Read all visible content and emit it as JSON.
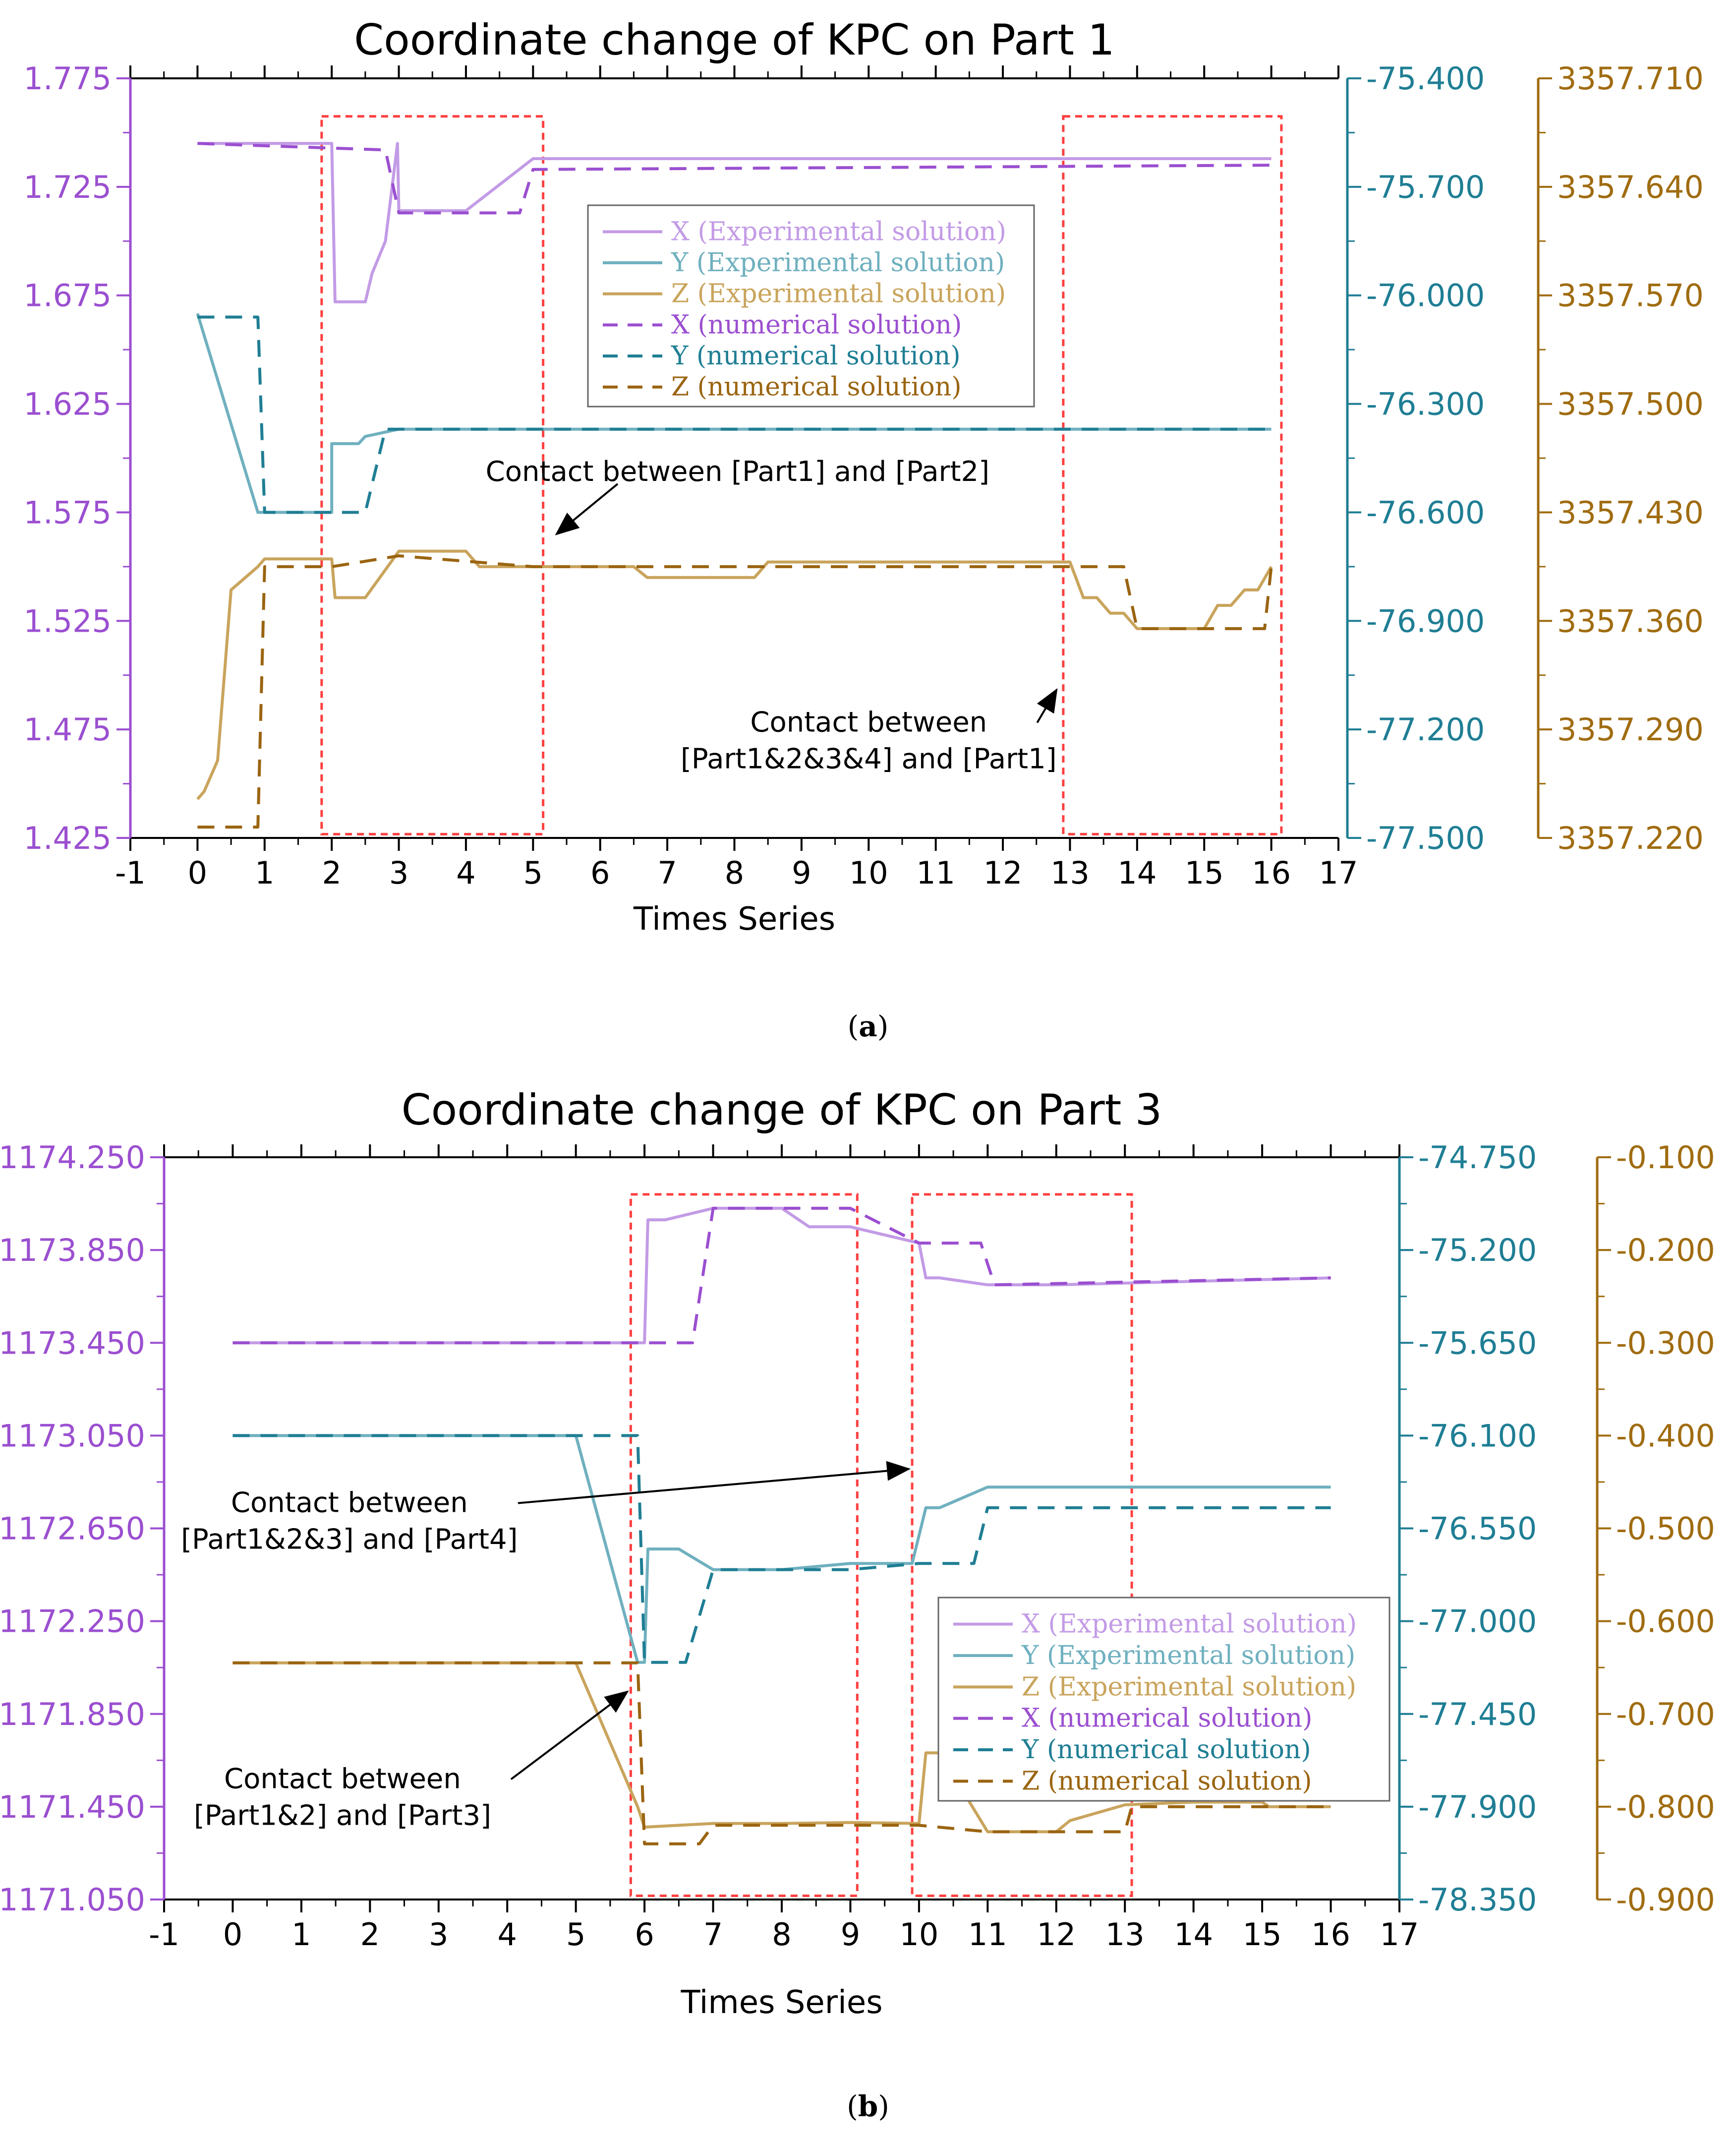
{
  "colors": {
    "x_axis": "#9b4fd0",
    "y_axis": "#1f7e94",
    "z_axis": "#a06c10",
    "x_exp": "#c39be6",
    "y_exp": "#6fb0bf",
    "z_exp": "#c9a45c",
    "x_num": "#9b4fd0",
    "y_num": "#1f7e94",
    "z_num": "#9a6410",
    "box": "#ff4040"
  },
  "chart_data": [
    {
      "type": "line",
      "title": "Coordinate change of KPC on Part 1",
      "xlabel": "Times Series",
      "caption": "a",
      "xlim": [
        -1,
        17
      ],
      "xticks": [
        "-1",
        "0",
        "1",
        "2",
        "3",
        "4",
        "5",
        "6",
        "7",
        "8",
        "9",
        "10",
        "11",
        "12",
        "13",
        "14",
        "15",
        "16",
        "17"
      ],
      "axes": {
        "left": {
          "color_key": "x_axis",
          "lim": [
            1.425,
            1.775
          ],
          "ticks": [
            "1.425",
            "1.475",
            "1.525",
            "1.575",
            "1.625",
            "1.675",
            "1.725",
            "1.775"
          ]
        },
        "right1": {
          "color_key": "y_axis",
          "lim": [
            -77.5,
            -75.4
          ],
          "ticks": [
            "-77.500",
            "-77.200",
            "-76.900",
            "-76.600",
            "-76.300",
            "-76.000",
            "-75.700",
            "-75.400"
          ]
        },
        "right2": {
          "color_key": "z_axis",
          "lim": [
            3357.22,
            3357.71
          ],
          "ticks": [
            "3357.220",
            "3357.290",
            "3357.360",
            "3357.430",
            "3357.500",
            "3357.570",
            "3357.640",
            "3357.710"
          ]
        }
      },
      "legend": {
        "position": "center-top",
        "entries": [
          {
            "label": "X (Experimental solution)",
            "series": 0
          },
          {
            "label": "Y (Experimental solution)",
            "series": 1
          },
          {
            "label": "Z (Experimental solution)",
            "series": 2
          },
          {
            "label": "X (numerical solution)",
            "series": 3
          },
          {
            "label": "Y (numerical solution)",
            "series": 4
          },
          {
            "label": "Z (numerical solution)",
            "series": 5
          }
        ]
      },
      "series": [
        {
          "name": "X (Experimental solution)",
          "axis": "left",
          "color_key": "x_exp",
          "dash": false,
          "x": [
            0,
            2,
            2.05,
            2.5,
            2.6,
            2.8,
            2.98,
            3.0,
            4.0,
            5.0,
            16.0
          ],
          "y": [
            1.745,
            1.745,
            1.672,
            1.672,
            1.685,
            1.7,
            1.745,
            1.714,
            1.714,
            1.738,
            1.738
          ]
        },
        {
          "name": "Y (Experimental solution)",
          "axis": "right1",
          "color_key": "y_exp",
          "dash": false,
          "x": [
            0,
            0.9,
            2.0,
            2.0,
            2.05,
            2.4,
            2.5,
            3.0,
            16.0
          ],
          "y": [
            -76.05,
            -76.6,
            -76.6,
            -76.41,
            -76.41,
            -76.41,
            -76.39,
            -76.37,
            -76.37
          ]
        },
        {
          "name": "Z (Experimental solution)",
          "axis": "right2",
          "color_key": "z_exp",
          "dash": false,
          "x": [
            0,
            0.1,
            0.3,
            0.5,
            0.9,
            1.0,
            2.0,
            2.05,
            2.5,
            3.0,
            4.0,
            4.2,
            6.5,
            6.7,
            7.0,
            8.3,
            8.5,
            13.0,
            13.2,
            13.4,
            13.6,
            13.8,
            14.0,
            15.0,
            15.2,
            15.4,
            15.6,
            15.8,
            16.0
          ],
          "y": [
            3357.245,
            3357.25,
            3357.27,
            3357.38,
            3357.395,
            3357.4,
            3357.4,
            3357.375,
            3357.375,
            3357.405,
            3357.405,
            3357.395,
            3357.395,
            3357.388,
            3357.388,
            3357.388,
            3357.398,
            3357.398,
            3357.375,
            3357.375,
            3357.365,
            3357.365,
            3357.355,
            3357.355,
            3357.37,
            3357.37,
            3357.38,
            3357.38,
            3357.395
          ]
        },
        {
          "name": "X (numerical solution)",
          "axis": "left",
          "color_key": "x_num",
          "dash": true,
          "x": [
            0,
            2.8,
            3.0,
            4.8,
            5.0,
            16.0
          ],
          "y": [
            1.745,
            1.742,
            1.713,
            1.713,
            1.733,
            1.735
          ]
        },
        {
          "name": "Y (numerical solution)",
          "axis": "right1",
          "color_key": "y_num",
          "dash": true,
          "x": [
            0,
            0.9,
            1.0,
            2.5,
            2.8,
            3.0,
            16.0
          ],
          "y": [
            -76.06,
            -76.06,
            -76.6,
            -76.6,
            -76.37,
            -76.37,
            -76.37
          ]
        },
        {
          "name": "Z (numerical solution)",
          "axis": "right2",
          "color_key": "z_num",
          "dash": true,
          "x": [
            0,
            0.9,
            1.0,
            2.0,
            3.0,
            5.0,
            13.8,
            14.0,
            15.9,
            16.0
          ],
          "y": [
            3357.227,
            3357.227,
            3357.395,
            3357.395,
            3357.402,
            3357.395,
            3357.395,
            3357.355,
            3357.355,
            3357.395
          ]
        }
      ],
      "boxes": [
        {
          "x0": 1.85,
          "x1": 5.15
        },
        {
          "x0": 12.9,
          "x1": 16.15
        }
      ],
      "annotations": [
        {
          "lines": [
            "Contact between [Part1] and [Part2]"
          ],
          "anchor": "end",
          "tx": 11.8,
          "ty_frac": 0.53,
          "ax": 5.35,
          "ay_frac": 0.6
        },
        {
          "lines": [
            "Contact between",
            "[Part1&2&3&4] and [Part1]"
          ],
          "anchor": "middle",
          "tx": 10.0,
          "ty_frac": 0.86,
          "ax": 12.8,
          "ay_frac": 0.805
        }
      ]
    },
    {
      "type": "line",
      "title": "Coordinate change of KPC on Part 3",
      "xlabel": "Times Series",
      "caption": "b",
      "xlim": [
        -1,
        17
      ],
      "xticks": [
        "-1",
        "0",
        "1",
        "2",
        "3",
        "4",
        "5",
        "6",
        "7",
        "8",
        "9",
        "10",
        "11",
        "12",
        "13",
        "14",
        "15",
        "16",
        "17"
      ],
      "axes": {
        "left": {
          "color_key": "x_axis",
          "lim": [
            1171.05,
            1174.25
          ],
          "ticks": [
            "1171.050",
            "1171.450",
            "1171.850",
            "1172.250",
            "1172.650",
            "1173.050",
            "1173.450",
            "1173.850",
            "1174.250"
          ]
        },
        "right1": {
          "color_key": "y_axis",
          "lim": [
            -78.35,
            -74.75
          ],
          "ticks": [
            "-78.350",
            "-77.900",
            "-77.450",
            "-77.000",
            "-76.550",
            "-76.100",
            "-75.650",
            "-75.200",
            "-74.750"
          ]
        },
        "right2": {
          "color_key": "z_axis",
          "lim": [
            -0.9,
            -0.1
          ],
          "ticks": [
            "-0.900",
            "-0.800",
            "-0.700",
            "-0.600",
            "-0.500",
            "-0.400",
            "-0.300",
            "-0.200",
            "-0.100"
          ]
        }
      },
      "legend": {
        "position": "lower-right",
        "entries": [
          {
            "label": "X (Experimental solution)",
            "series": 0
          },
          {
            "label": "Y (Experimental solution)",
            "series": 1
          },
          {
            "label": "Z (Experimental solution)",
            "series": 2
          },
          {
            "label": "X (numerical solution)",
            "series": 3
          },
          {
            "label": "Y (numerical solution)",
            "series": 4
          },
          {
            "label": "Z (numerical solution)",
            "series": 5
          }
        ]
      },
      "series": [
        {
          "name": "X (Experimental solution)",
          "axis": "left",
          "color_key": "x_exp",
          "dash": false,
          "x": [
            0,
            6.0,
            6.05,
            6.3,
            7.0,
            8.0,
            8.4,
            9.0,
            10.0,
            10.1,
            10.3,
            11.0,
            12.0,
            16.0
          ],
          "y": [
            1173.45,
            1173.45,
            1173.98,
            1173.98,
            1174.03,
            1174.03,
            1173.95,
            1173.95,
            1173.88,
            1173.73,
            1173.73,
            1173.7,
            1173.7,
            1173.73
          ]
        },
        {
          "name": "Y (Experimental solution)",
          "axis": "right1",
          "color_key": "y_exp",
          "dash": false,
          "x": [
            0,
            5.0,
            5.9,
            6.0,
            6.05,
            6.5,
            7.0,
            8.0,
            9.0,
            9.9,
            10.1,
            10.3,
            11.0,
            16.0
          ],
          "y": [
            -76.1,
            -76.1,
            -77.2,
            -77.2,
            -76.65,
            -76.65,
            -76.75,
            -76.75,
            -76.72,
            -76.72,
            -76.45,
            -76.45,
            -76.35,
            -76.35
          ]
        },
        {
          "name": "Z (Experimental solution)",
          "axis": "right2",
          "color_key": "z_exp",
          "dash": false,
          "x": [
            0,
            5.0,
            5.9,
            6.0,
            7.0,
            8.0,
            9.0,
            10.0,
            10.1,
            10.3,
            11.0,
            11.5,
            12.0,
            12.2,
            13.0,
            14.0,
            15.0,
            15.1,
            16.0
          ],
          "y": [
            -0.645,
            -0.645,
            -0.8,
            -0.822,
            -0.818,
            -0.818,
            -0.817,
            -0.818,
            -0.742,
            -0.742,
            -0.827,
            -0.827,
            -0.827,
            -0.815,
            -0.798,
            -0.795,
            -0.795,
            -0.8,
            -0.8
          ]
        },
        {
          "name": "X (numerical solution)",
          "axis": "left",
          "color_key": "x_num",
          "dash": true,
          "x": [
            0,
            6.7,
            7.0,
            9.0,
            10.0,
            10.9,
            11.1,
            16.0
          ],
          "y": [
            1173.45,
            1173.45,
            1174.03,
            1174.03,
            1173.88,
            1173.88,
            1173.7,
            1173.73
          ]
        },
        {
          "name": "Y (numerical solution)",
          "axis": "right1",
          "color_key": "y_num",
          "dash": true,
          "x": [
            0,
            5.9,
            6.0,
            6.6,
            7.0,
            8.0,
            9.0,
            10.0,
            10.8,
            11.0,
            16.0
          ],
          "y": [
            -76.1,
            -76.1,
            -77.2,
            -77.2,
            -76.75,
            -76.75,
            -76.75,
            -76.72,
            -76.72,
            -76.45,
            -76.45
          ]
        },
        {
          "name": "Z (numerical solution)",
          "axis": "right2",
          "color_key": "z_num",
          "dash": true,
          "x": [
            0,
            5.9,
            6.0,
            6.8,
            7.0,
            10.0,
            11.0,
            13.0,
            13.1,
            16.0
          ],
          "y": [
            -0.645,
            -0.645,
            -0.84,
            -0.84,
            -0.82,
            -0.82,
            -0.827,
            -0.827,
            -0.8,
            -0.8
          ]
        }
      ],
      "boxes": [
        {
          "x0": 5.8,
          "x1": 9.1
        },
        {
          "x0": 9.9,
          "x1": 13.1
        }
      ],
      "annotations": [
        {
          "lines": [
            "Contact between",
            "[Part1&2&3] and [Part4]"
          ],
          "anchor": "middle",
          "tx": 1.7,
          "ty_frac": 0.478,
          "ax": 9.85,
          "ay_frac": 0.42
        },
        {
          "lines": [
            "Contact between",
            "[Part1&2] and [Part3]"
          ],
          "anchor": "middle",
          "tx": 1.6,
          "ty_frac": 0.85,
          "ax": 5.75,
          "ay_frac": 0.72
        }
      ]
    }
  ]
}
